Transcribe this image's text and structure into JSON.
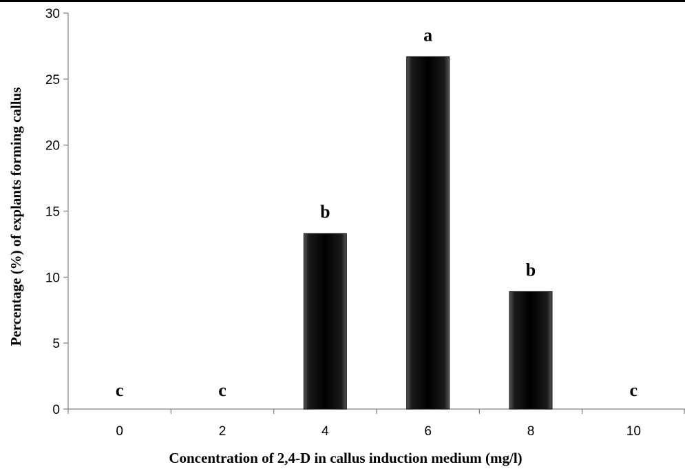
{
  "chart_data": {
    "type": "bar",
    "categories": [
      "0",
      "2",
      "4",
      "6",
      "8",
      "10"
    ],
    "values": [
      0,
      0,
      13.3,
      26.7,
      8.9,
      0
    ],
    "significance_letters": [
      "c",
      "c",
      "b",
      "a",
      "b",
      "c"
    ],
    "xlabel": "Concentration of 2,4-D in callus induction medium (mg/l)",
    "ylabel": "Percentage (%)  of explants forming callus",
    "ylim": [
      0,
      30
    ],
    "yticks": [
      "0",
      "5",
      "10",
      "15",
      "20",
      "25",
      "30"
    ],
    "bar_color": "#111111",
    "grid": false,
    "legend": "none"
  }
}
